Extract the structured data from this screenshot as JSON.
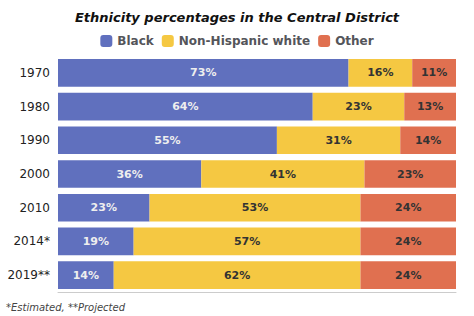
{
  "chart_data": {
    "type": "bar",
    "title": "Ethnicity percentages in the Central District",
    "orientation": "horizontal",
    "stacked": true,
    "categories": [
      "1970",
      "1980",
      "1990",
      "2000",
      "2010",
      "2014*",
      "2019**"
    ],
    "series": [
      {
        "name": "Black",
        "color": "#6070be",
        "values": [
          73,
          64,
          55,
          36,
          23,
          19,
          14
        ],
        "value_labels": [
          "73%",
          "64%",
          "55%",
          "36%",
          "23%",
          "19%",
          "14%"
        ]
      },
      {
        "name": "Non-Hispanic white",
        "color": "#f5c842",
        "values": [
          16,
          23,
          31,
          41,
          53,
          57,
          62
        ],
        "value_labels": [
          "16%",
          "23%",
          "31%",
          "41%",
          "53%",
          "57%",
          "62%"
        ]
      },
      {
        "name": "Other",
        "color": "#e07050",
        "values": [
          11,
          13,
          14,
          23,
          24,
          24,
          24
        ],
        "value_labels": [
          "11%",
          "13%",
          "14%",
          "23%",
          "24%",
          "24%",
          "24%"
        ]
      }
    ],
    "xlim": [
      0,
      100
    ],
    "xticks": [],
    "tick_labels": "y",
    "data_labels": true,
    "grid": false,
    "legend": "top",
    "annotations": [
      "*Estimated, **Projected"
    ]
  }
}
